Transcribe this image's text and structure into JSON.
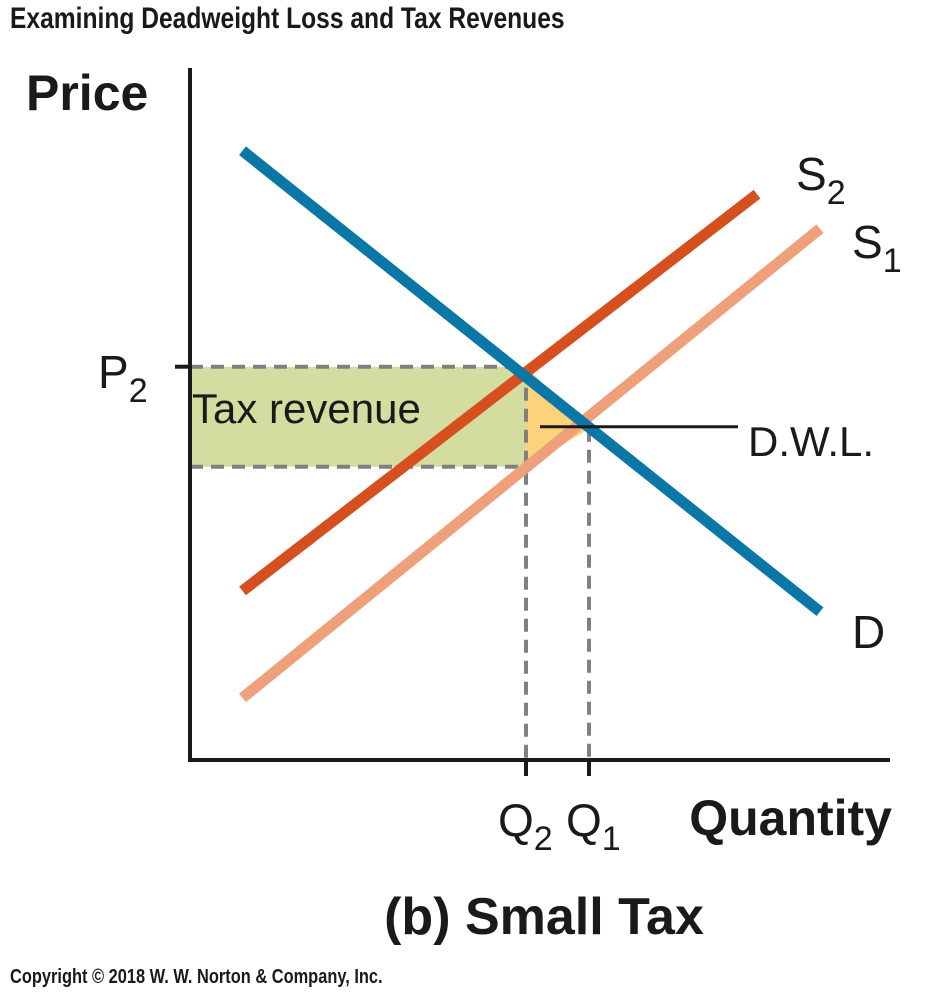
{
  "header": {
    "title": "Examining Deadweight Loss and Tax Revenues"
  },
  "footer": {
    "copyright": "Copyright © 2018 W. W. Norton & Company, Inc."
  },
  "chart_data": {
    "type": "line",
    "title": "Examining Deadweight Loss and Tax Revenues",
    "subtitle": "(b) Small Tax",
    "xlabel": "Quantity",
    "ylabel": "Price",
    "xlim": [
      0,
      10
    ],
    "ylim": [
      0,
      10
    ],
    "grid": false,
    "colors": {
      "demand": "#0b77a6",
      "supply_taxed": "#d64f1e",
      "supply_original": "#eea07a",
      "tax_revenue_fill": "#d5dc9f",
      "dwl_fill": "#fcd27a",
      "guides": "#808080"
    },
    "series": [
      {
        "name": "D",
        "key": "demand",
        "x": [
          0.75,
          9.0
        ],
        "y": [
          8.83,
          2.15
        ]
      },
      {
        "name": "S2",
        "key": "supply_taxed",
        "x": [
          0.75,
          8.1
        ],
        "y": [
          2.45,
          8.2
        ]
      },
      {
        "name": "S1",
        "key": "supply_original",
        "x": [
          0.75,
          9.0
        ],
        "y": [
          0.9,
          7.7
        ]
      }
    ],
    "points": {
      "P2": {
        "label": "P",
        "sub": "2",
        "y": 5.7
      },
      "Q2": {
        "label": "Q",
        "sub": "2",
        "x": 4.8
      },
      "Q1": {
        "label": "Q",
        "sub": "1",
        "x": 5.7
      },
      "lower_price": 4.25,
      "equilibrium_price": 4.8
    },
    "annotations": {
      "tax_revenue": "Tax revenue",
      "dwl": "D.W.L.",
      "s2_label": {
        "main": "S",
        "sub": "2"
      },
      "s1_label": {
        "main": "S",
        "sub": "1"
      },
      "d_label": "D"
    }
  }
}
